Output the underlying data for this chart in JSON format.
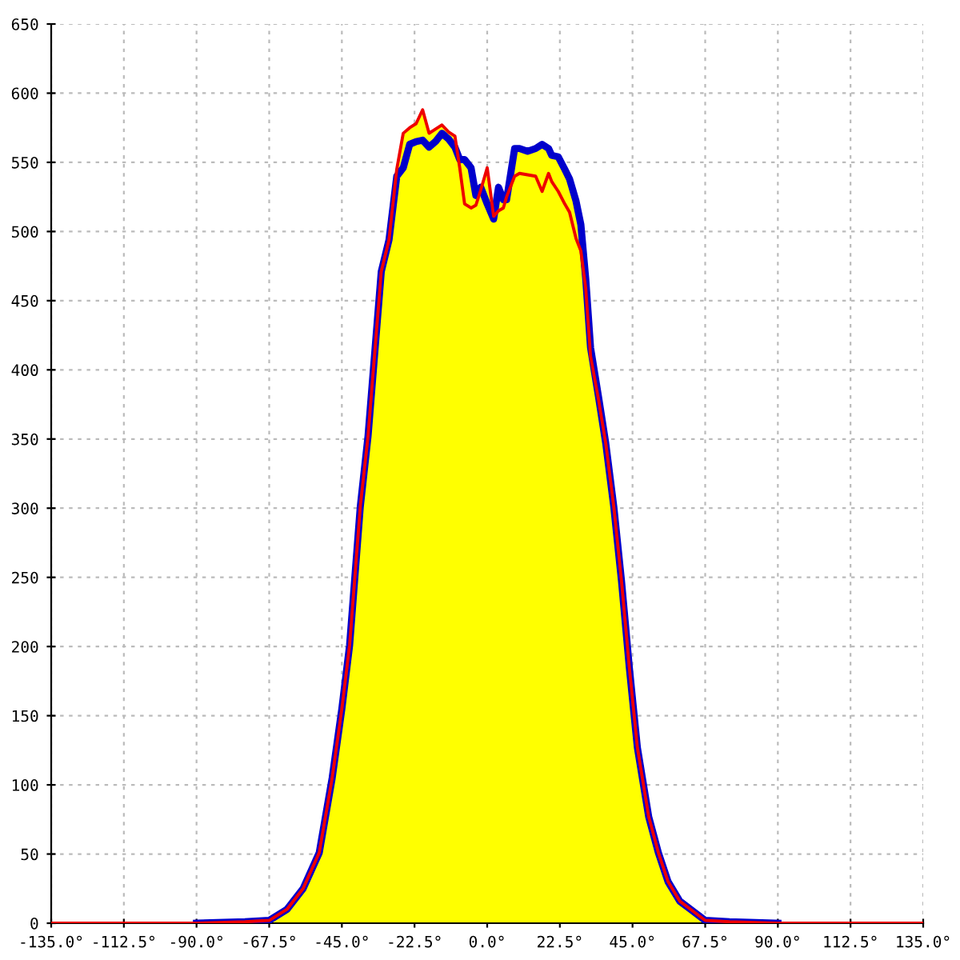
{
  "chart_data": {
    "type": "line",
    "x": [
      -90,
      -75,
      -67.5,
      -62,
      -57,
      -52,
      -48,
      -45,
      -42.6,
      -39.3,
      -36.9,
      -32.8,
      -30.4,
      -28,
      -26,
      -24,
      -22,
      -20,
      -18,
      -16,
      -14,
      -12,
      -10,
      -8.5,
      -7,
      -5,
      -3.5,
      -2,
      0,
      2,
      3.5,
      5,
      6,
      8.5,
      10,
      12.5,
      15,
      17,
      19,
      20,
      22,
      24,
      25.5,
      27.5,
      29,
      30.5,
      32,
      34.5,
      36.7,
      39.2,
      41.6,
      44,
      46.5,
      50,
      53,
      56,
      59.6,
      63,
      67.5,
      75,
      90
    ],
    "series": [
      {
        "type": "area",
        "color": "#ffff00",
        "values": [
          0,
          1,
          2,
          10,
          25,
          51,
          105,
          155,
          201,
          301,
          352,
          471,
          494,
          545,
          571,
          575,
          578,
          588,
          571,
          574,
          577,
          572,
          569,
          552,
          552,
          546,
          526,
          532,
          546,
          511,
          532,
          523,
          525,
          560,
          560,
          558,
          560,
          563,
          560,
          555,
          554,
          545,
          538,
          522,
          505,
          466,
          416,
          380,
          347,
          301,
          247,
          185,
          127,
          77,
          51,
          30,
          16,
          10,
          2,
          1,
          0
        ]
      },
      {
        "color": "#0000cc",
        "values": [
          0,
          1,
          2,
          10,
          25,
          51,
          105,
          155,
          201,
          301,
          352,
          471,
          494,
          540,
          546,
          563,
          565,
          566,
          561,
          565,
          571,
          567,
          561,
          552,
          552,
          546,
          526,
          532,
          520,
          509,
          532,
          523,
          523,
          560,
          560,
          558,
          560,
          563,
          560,
          555,
          554,
          545,
          538,
          522,
          505,
          466,
          416,
          380,
          347,
          301,
          247,
          185,
          127,
          77,
          51,
          30,
          16,
          10,
          2,
          1,
          0
        ]
      },
      {
        "color": "#ee0000",
        "x": [
          -135,
          -90,
          -75,
          -67.5,
          -62,
          -57,
          -52,
          -48,
          -45,
          -42.6,
          -39.3,
          -36.9,
          -32.8,
          -30.4,
          -28,
          -26,
          -24,
          -22,
          -20,
          -18,
          -16,
          -14,
          -12,
          -10,
          -8.5,
          -7,
          -5,
          -3.5,
          -2,
          0,
          2,
          3.5,
          5,
          6,
          8.5,
          10,
          12.5,
          15,
          17,
          19,
          20,
          22,
          24,
          25.5,
          27.5,
          29,
          30.5,
          32,
          34.5,
          36.7,
          39.2,
          41.6,
          44,
          46.5,
          50,
          53,
          56,
          59.6,
          63,
          67.5,
          75,
          90,
          135
        ],
        "values": [
          0,
          0,
          1,
          2,
          10,
          25,
          51,
          105,
          155,
          201,
          301,
          352,
          471,
          494,
          545,
          571,
          575,
          578,
          588,
          571,
          574,
          577,
          572,
          569,
          546,
          520,
          517,
          519,
          530,
          546,
          511,
          515,
          517,
          525,
          540,
          542,
          541,
          540,
          529,
          542,
          536,
          529,
          520,
          514,
          495,
          486,
          459,
          410,
          378,
          347,
          301,
          247,
          185,
          127,
          77,
          51,
          30,
          16,
          10,
          2,
          1,
          0,
          0
        ]
      }
    ],
    "xlim": [
      -135,
      135
    ],
    "xticks": [
      {
        "value": -135,
        "label": "-135.0°"
      },
      {
        "value": -112.5,
        "label": "-112.5°"
      },
      {
        "value": -90,
        "label": "-90.0°"
      },
      {
        "value": -67.5,
        "label": "-67.5°"
      },
      {
        "value": -45,
        "label": "-45.0°"
      },
      {
        "value": -22.5,
        "label": "-22.5°"
      },
      {
        "value": 0,
        "label": "0.0°"
      },
      {
        "value": 22.5,
        "label": "22.5°"
      },
      {
        "value": 45,
        "label": "45.0°"
      },
      {
        "value": 67.5,
        "label": "67.5°"
      },
      {
        "value": 90,
        "label": "90.0°"
      },
      {
        "value": 112.5,
        "label": "112.5°"
      },
      {
        "value": 135,
        "label": "135.0°"
      }
    ],
    "ylim": [
      0,
      650
    ],
    "yticks": [
      0,
      50,
      100,
      150,
      200,
      250,
      300,
      350,
      400,
      450,
      500,
      550,
      600,
      650
    ],
    "grid": true
  }
}
